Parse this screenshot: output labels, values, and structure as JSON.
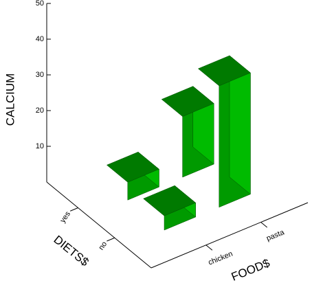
{
  "chart_data": {
    "type": "bar3d",
    "y_label": "CALCIUM",
    "x_label": "FOOD$",
    "z_label": "DIETS$",
    "categories": [
      "chicken",
      "pasta"
    ],
    "series": [
      {
        "name": "yes",
        "values": [
          5,
          17
        ]
      },
      {
        "name": "no",
        "values": [
          4,
          34
        ]
      }
    ],
    "ylim": [
      0,
      50
    ],
    "yticks": [
      10,
      20,
      30,
      40,
      50
    ],
    "face_colors": {
      "top": "#007a00",
      "left": "#009a00",
      "right": "#00bb00"
    }
  }
}
